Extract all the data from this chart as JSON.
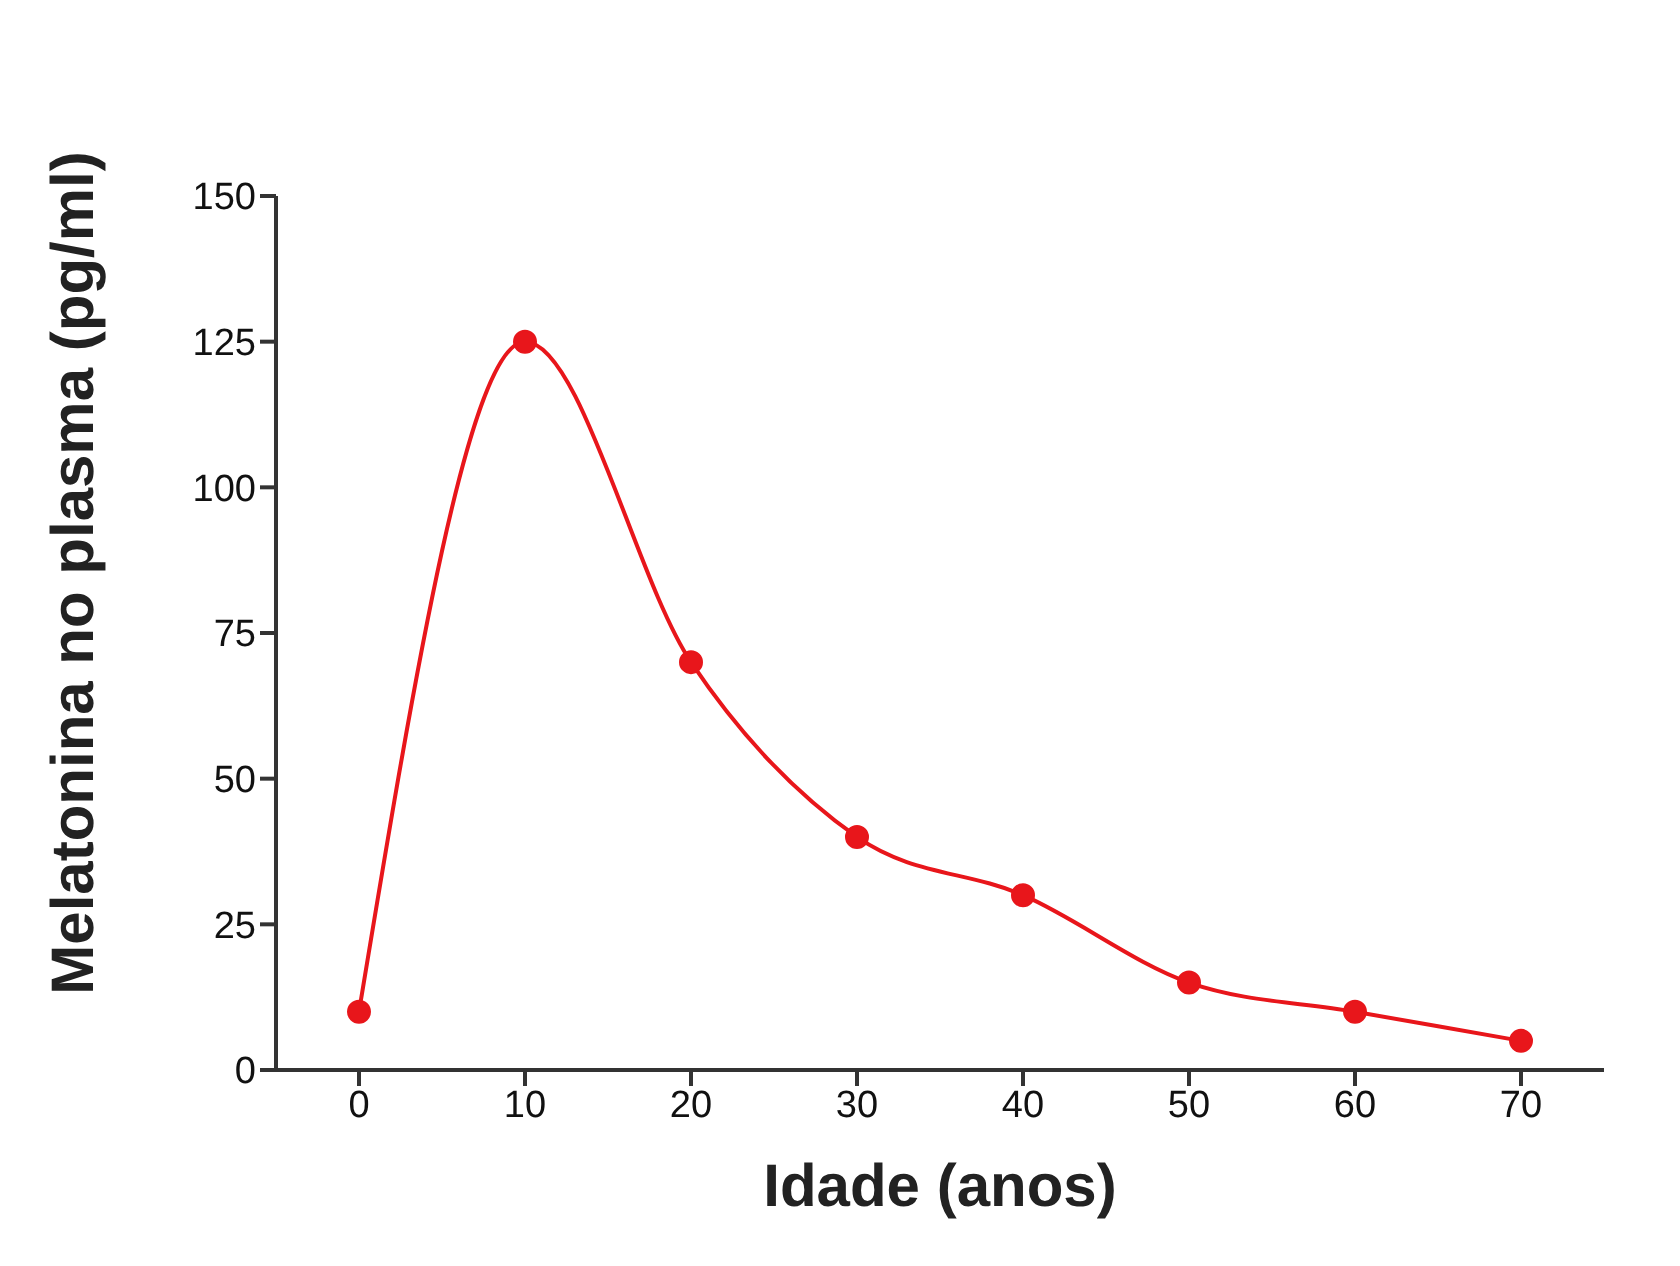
{
  "chart_data": {
    "type": "line",
    "xlabel": "Idade (anos)",
    "ylabel": "Melatonina no plasma (pg/ml)",
    "x": [
      0,
      10,
      20,
      30,
      40,
      50,
      60,
      70
    ],
    "series": [
      {
        "color": "#e8161b",
        "values": [
          10,
          125,
          70,
          40,
          30,
          15,
          10,
          5
        ]
      }
    ],
    "xlim": [
      -5,
      75
    ],
    "ylim": [
      0,
      150
    ],
    "xticks": [
      0,
      10,
      20,
      30,
      40,
      50,
      60,
      70
    ],
    "yticks": [
      0,
      25,
      50,
      75,
      100,
      125,
      150
    ],
    "marker": "circle"
  }
}
